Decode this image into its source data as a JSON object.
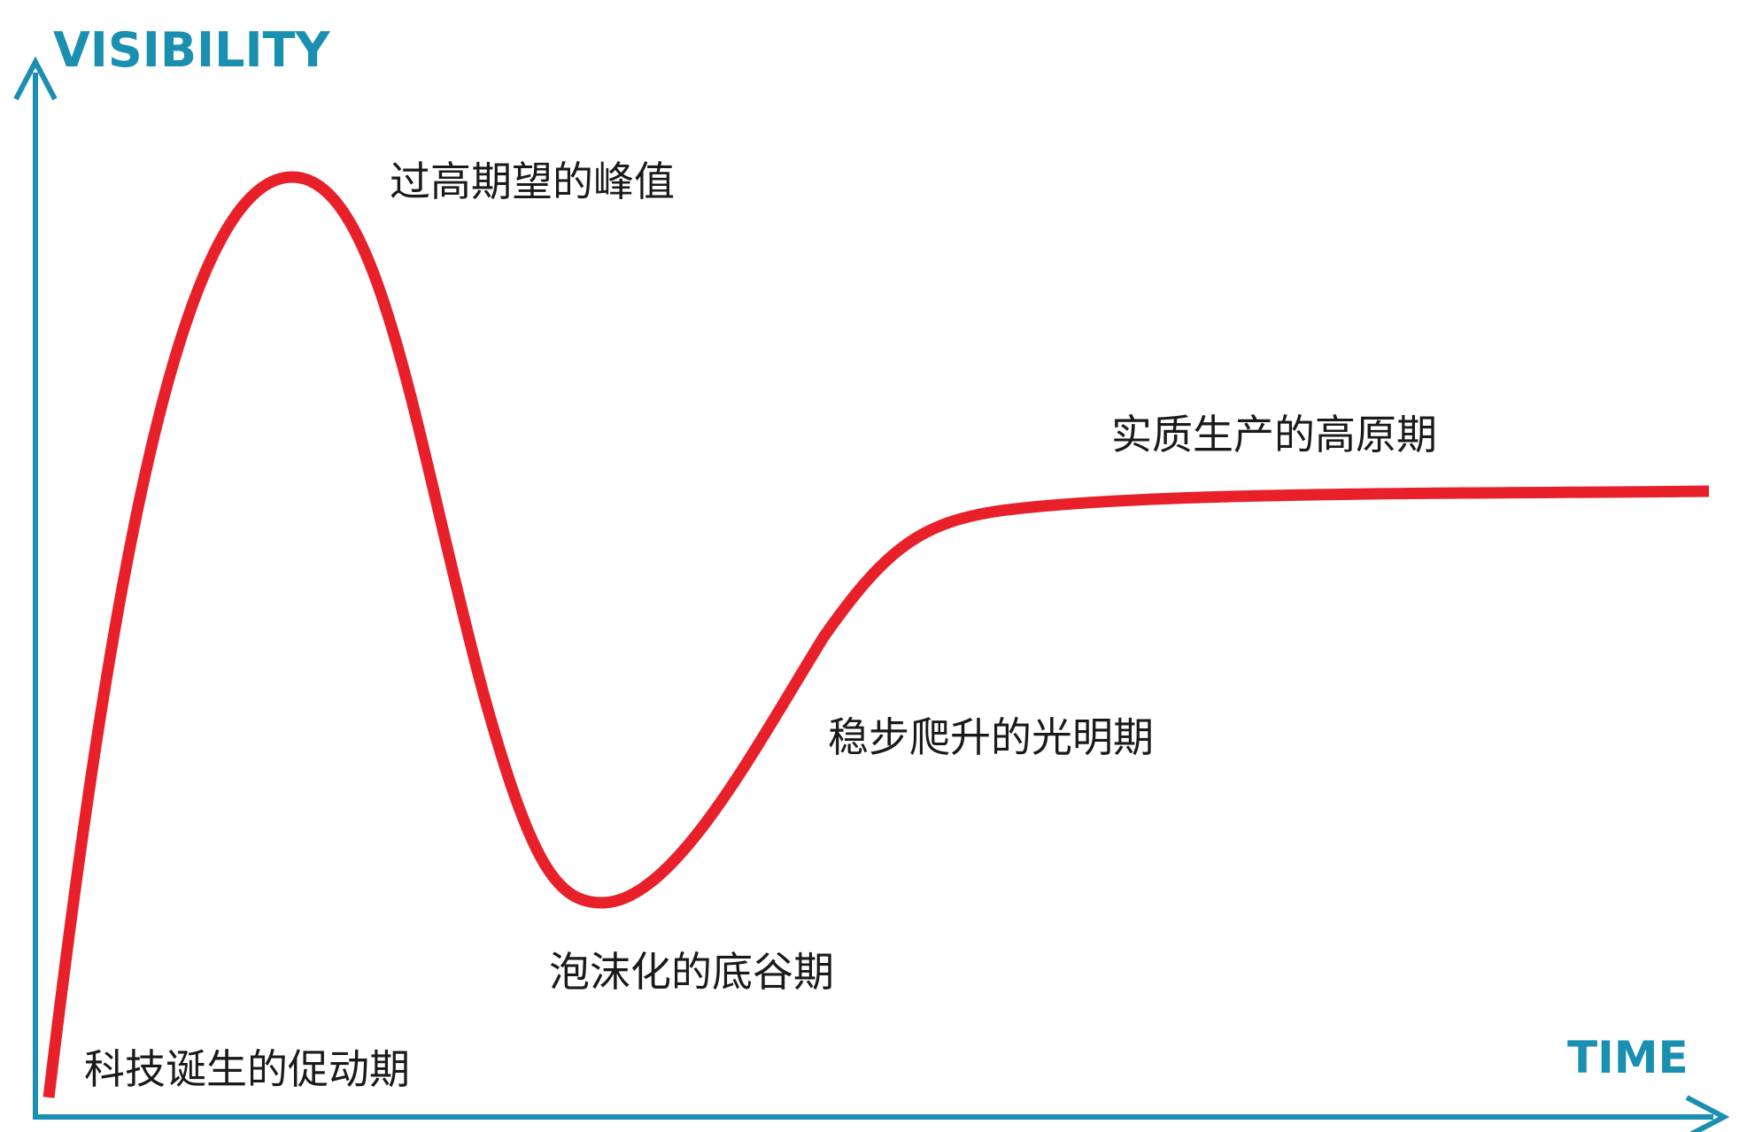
{
  "axes": {
    "y_title": "VISIBILITY",
    "x_title": "TIME",
    "color": "#1a8fb0"
  },
  "curve": {
    "color": "#e8202a"
  },
  "phases": {
    "technology_trigger": "科技诞生的促动期",
    "peak": "过高期望的峰值",
    "trough": "泡沫化的底谷期",
    "slope": "稳步爬升的光明期",
    "plateau": "实质生产的高原期"
  }
}
